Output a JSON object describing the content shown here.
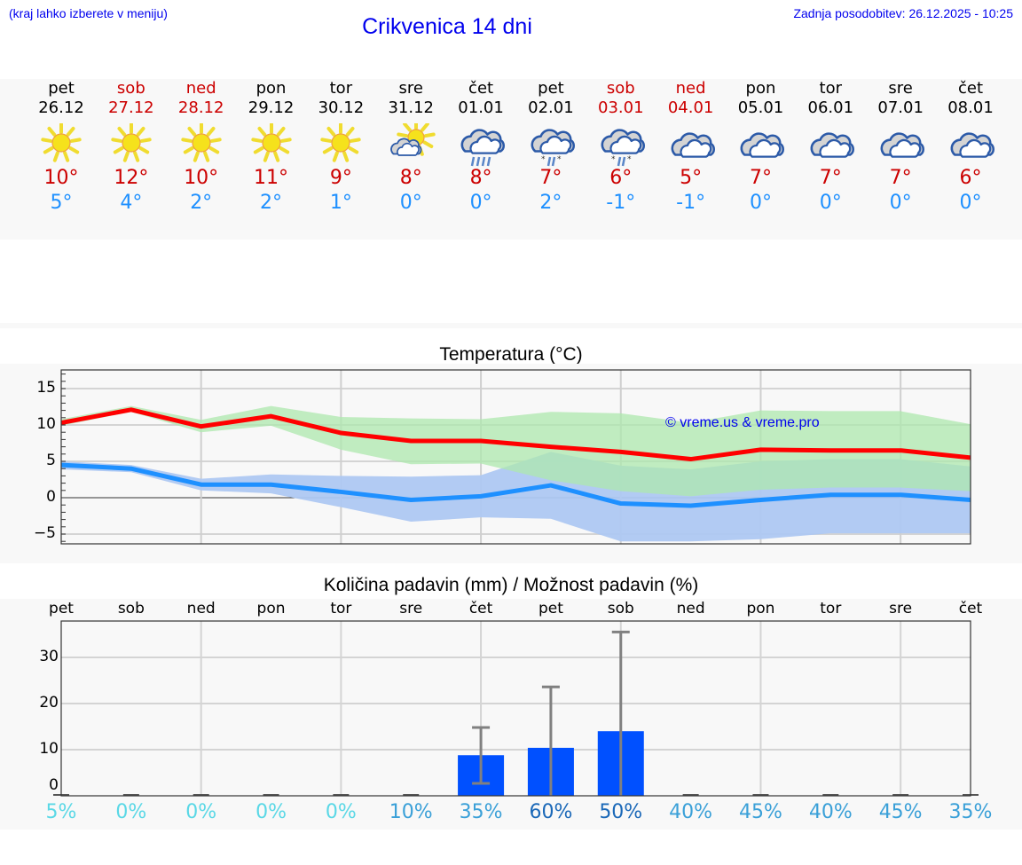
{
  "header": {
    "location_hint": "(kraj lahko izberete v meniju)",
    "title": "Crikvenica 14 dni",
    "last_update": "Zadnja posodobitev: 26.12.2025 - 10:25"
  },
  "forecast": [
    {
      "day": "pet",
      "date": "26.12",
      "weekend": false,
      "icon": "sun-icon",
      "max": "10°",
      "min": "5°"
    },
    {
      "day": "sob",
      "date": "27.12",
      "weekend": true,
      "icon": "sun-icon",
      "max": "12°",
      "min": "4°"
    },
    {
      "day": "ned",
      "date": "28.12",
      "weekend": true,
      "icon": "sun-icon",
      "max": "10°",
      "min": "2°"
    },
    {
      "day": "pon",
      "date": "29.12",
      "weekend": false,
      "icon": "sun-icon",
      "max": "11°",
      "min": "2°"
    },
    {
      "day": "tor",
      "date": "30.12",
      "weekend": false,
      "icon": "sun-icon",
      "max": "9°",
      "min": "1°"
    },
    {
      "day": "sre",
      "date": "31.12",
      "weekend": false,
      "icon": "partly-cloudy-icon",
      "max": "8°",
      "min": "0°"
    },
    {
      "day": "čet",
      "date": "01.01",
      "weekend": false,
      "icon": "cloud-rain-icon",
      "max": "8°",
      "min": "0°"
    },
    {
      "day": "pet",
      "date": "02.01",
      "weekend": false,
      "icon": "cloud-sleet-icon",
      "max": "7°",
      "min": "2°"
    },
    {
      "day": "sob",
      "date": "03.01",
      "weekend": true,
      "icon": "cloud-sleet-icon",
      "max": "6°",
      "min": "-1°"
    },
    {
      "day": "ned",
      "date": "04.01",
      "weekend": true,
      "icon": "cloudy-icon",
      "max": "5°",
      "min": "-1°"
    },
    {
      "day": "pon",
      "date": "05.01",
      "weekend": false,
      "icon": "cloudy-icon",
      "max": "7°",
      "min": "0°"
    },
    {
      "day": "tor",
      "date": "06.01",
      "weekend": false,
      "icon": "cloudy-icon",
      "max": "7°",
      "min": "0°"
    },
    {
      "day": "sre",
      "date": "07.01",
      "weekend": false,
      "icon": "cloudy-icon",
      "max": "7°",
      "min": "0°"
    },
    {
      "day": "čet",
      "date": "08.01",
      "weekend": false,
      "icon": "cloudy-icon",
      "max": "6°",
      "min": "0°"
    }
  ],
  "colors": {
    "title": "#0000ee",
    "weekend": "#cc0000",
    "max_temp": "#cc0000",
    "min_temp": "#1e90ff",
    "max_line": "#ff0000",
    "min_line": "#1e90ff",
    "max_band": "#aee8ae",
    "min_band": "#aec8f2",
    "bar": "#0050ff",
    "errorbar": "#808080"
  },
  "chart_data": [
    {
      "type": "line",
      "title": "Temperatura (°C)",
      "watermark": "© vreme.us & vreme.pro",
      "xlabel": "",
      "ylabel": "",
      "ylim": [
        -6.3,
        17.5
      ],
      "yticks": [
        15,
        10,
        5,
        0,
        -5
      ],
      "yticklabels": [
        "15",
        "10",
        "5",
        "0",
        "−5"
      ],
      "grid": true,
      "categories": [
        "26.12",
        "27.12",
        "28.12",
        "29.12",
        "30.12",
        "31.12",
        "01.01",
        "02.01",
        "03.01",
        "04.01",
        "05.01",
        "06.01",
        "07.01",
        "08.01"
      ],
      "series": [
        {
          "name": "max",
          "color": "#ff0000",
          "values": [
            10.3,
            12.1,
            9.8,
            11.2,
            8.9,
            7.8,
            7.8,
            7.0,
            6.3,
            5.3,
            6.6,
            6.5,
            6.5,
            5.5
          ],
          "band_high": [
            10.8,
            12.6,
            10.7,
            12.6,
            11.1,
            10.9,
            10.8,
            11.8,
            11.6,
            10.3,
            12.0,
            11.9,
            11.9,
            10.1
          ],
          "band_low": [
            9.9,
            11.8,
            9.0,
            9.9,
            6.6,
            4.6,
            4.7,
            2.4,
            0.9,
            0.2,
            1.1,
            1.4,
            1.4,
            0.9
          ]
        },
        {
          "name": "min",
          "color": "#1e90ff",
          "values": [
            4.5,
            4.0,
            1.8,
            1.8,
            0.8,
            -0.3,
            0.2,
            1.7,
            -0.8,
            -1.1,
            -0.3,
            0.4,
            0.4,
            -0.3
          ],
          "band_high": [
            5.0,
            4.5,
            2.6,
            3.2,
            3.0,
            2.9,
            3.1,
            6.3,
            4.4,
            3.9,
            5.0,
            5.3,
            5.3,
            4.3
          ],
          "band_low": [
            3.9,
            3.5,
            1.0,
            0.6,
            -1.3,
            -3.3,
            -2.7,
            -2.9,
            -6.0,
            -6.0,
            -5.7,
            -4.9,
            -4.9,
            -4.9
          ]
        }
      ]
    },
    {
      "type": "bar",
      "title": "Količina padavin (mm) / Možnost padavin (%)",
      "xlabel": "",
      "ylabel": "",
      "ylim": [
        0,
        37.9
      ],
      "yticks": [
        0,
        10,
        20,
        30
      ],
      "yticklabels": [
        "0",
        "10",
        "20",
        "30"
      ],
      "grid": true,
      "categories": [
        "pet",
        "sob",
        "ned",
        "pon",
        "tor",
        "sre",
        "čet",
        "pet",
        "sob",
        "ned",
        "pon",
        "tor",
        "sre",
        "čet"
      ],
      "values": [
        0,
        0,
        0,
        0,
        0,
        0,
        8.8,
        10.4,
        14.0,
        0,
        0,
        0,
        0,
        0
      ],
      "error_low": [
        0,
        0,
        0,
        0,
        0,
        0,
        2.7,
        0,
        0,
        0,
        0,
        0,
        0,
        0
      ],
      "error_high": [
        0,
        0,
        0,
        0,
        0,
        0,
        14.8,
        23.6,
        35.5,
        0,
        0,
        0,
        0,
        0
      ],
      "probability_labels": [
        "5%",
        "0%",
        "0%",
        "0%",
        "0%",
        "10%",
        "35%",
        "60%",
        "50%",
        "40%",
        "45%",
        "40%",
        "45%",
        "35%"
      ],
      "probability_colors": [
        "#5ad8e6",
        "#5ad8e6",
        "#5ad8e6",
        "#5ad8e6",
        "#5ad8e6",
        "#3aa0d8",
        "#3aa0d8",
        "#1a68b8",
        "#1a68b8",
        "#3aa0d8",
        "#3aa0d8",
        "#3aa0d8",
        "#3aa0d8",
        "#3aa0d8"
      ]
    }
  ]
}
